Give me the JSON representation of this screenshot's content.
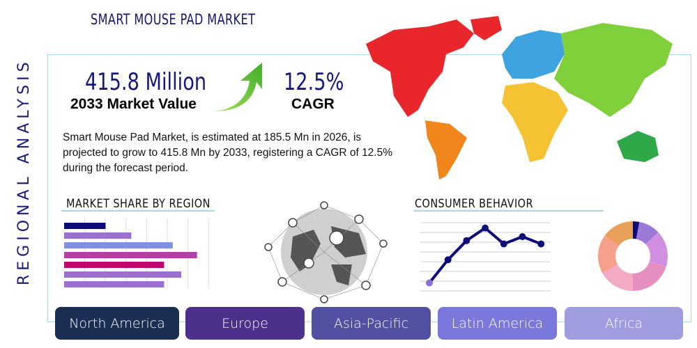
{
  "header": {
    "title": "SMART MOUSE PAD MARKET",
    "side_label": "REGIONAL ANALYSIS"
  },
  "stats": {
    "market_value": "415.8 Million",
    "market_value_label": "2033 Market Value",
    "cagr": "12.5%",
    "cagr_label": "CAGR"
  },
  "description": "Smart Mouse Pad Market, is estimated at 185.5 Mn in 2026, is projected to grow to 415.8 Mn by 2033, registering a CAGR of 12.5% during the forecast period.",
  "sections": {
    "market_share": "MARKET SHARE BY REGION",
    "consumer": "CONSUMER BEHAVIOR"
  },
  "regions": [
    {
      "label": "North America",
      "color": "#1b2f55"
    },
    {
      "label": "Europe",
      "color": "#4d2f8c"
    },
    {
      "label": "Asia-Pacific",
      "color": "#5250a2"
    },
    {
      "label": "Latin America",
      "color": "#7b78db"
    },
    {
      "label": "Africa",
      "color": "#9f9de0"
    }
  ],
  "map_colors": {
    "north_america": "#e8262b",
    "south_america": "#f0851c",
    "europe": "#3fa3e0",
    "asia": "#7fd03a",
    "africa": "#f5c233",
    "oceania": "#2fa84a"
  },
  "decor_bars": {
    "values": [
      0.29,
      0.47,
      0.76,
      0.93,
      0.7,
      0.82,
      0.7
    ],
    "colors": [
      "#0d0d7a",
      "#9a6fd0",
      "#7f92e0",
      "#b040a8",
      "#c0086e",
      "#9a6fd0",
      "#9a6fd0"
    ]
  },
  "decor_line": {
    "values": [
      0.1,
      0.45,
      0.74,
      0.93,
      0.69,
      0.8,
      0.69
    ],
    "color": "#0d0d7a"
  },
  "decor_donut": {
    "values": [
      3,
      10,
      17,
      20,
      17,
      18,
      15
    ],
    "colors": [
      "#0d0d7a",
      "#9a7ad6",
      "#d08fe0",
      "#e48fc0",
      "#f4a9c4",
      "#f4a08a",
      "#e9a05a"
    ]
  }
}
